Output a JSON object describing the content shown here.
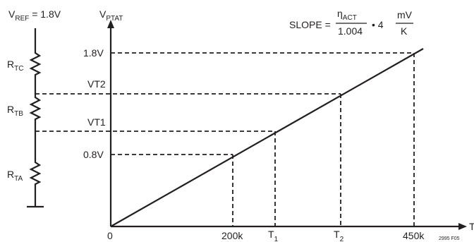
{
  "ladder": {
    "vref_main": "V",
    "vref_sub": "REF",
    "vref_value": " = 1.8V",
    "resistors": [
      {
        "main": "R",
        "sub": "TC"
      },
      {
        "main": "R",
        "sub": "TB"
      },
      {
        "main": "R",
        "sub": "TA"
      }
    ]
  },
  "axes": {
    "y_main": "V",
    "y_sub": "PTAT",
    "x_main": "T",
    "y_ticks": [
      "1.8V",
      "VT2",
      "VT1",
      "0.8V"
    ],
    "x_ticks": [
      {
        "main": "0",
        "sub": ""
      },
      {
        "main": "200k",
        "sub": ""
      },
      {
        "main": "T",
        "sub": "1"
      },
      {
        "main": "T",
        "sub": "2"
      },
      {
        "main": "450k",
        "sub": ""
      }
    ]
  },
  "slope": {
    "prefix": "SLOPE = ",
    "eta": "η",
    "eta_sub": "ACT",
    "denominator": "1.004",
    "mult": "• 4",
    "unit_num": "mV",
    "unit_den": "K"
  },
  "figure_code": "2995 F05"
}
